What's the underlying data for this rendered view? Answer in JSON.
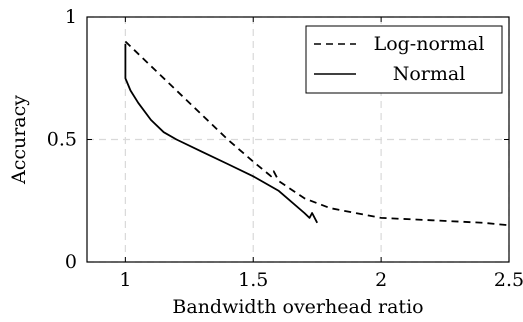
{
  "chart_data": {
    "type": "line",
    "xlabel": "Bandwidth overhead ratio",
    "ylabel": "Accuracy",
    "xlim": [
      0.85,
      2.5
    ],
    "ylim": [
      0,
      1
    ],
    "xticks": [
      1,
      1.5,
      2,
      2.5
    ],
    "xtick_labels": [
      "1",
      "1.5",
      "2",
      "2.5"
    ],
    "yticks": [
      0,
      0.5,
      1
    ],
    "ytick_labels": [
      "0",
      "0.5",
      "1"
    ],
    "grid": true,
    "legend_position": "top-right",
    "series": [
      {
        "name": "Log-normal",
        "style": "dashed",
        "color": "#000000",
        "x": [
          1.0,
          1.1,
          1.2,
          1.3,
          1.4,
          1.5,
          1.57,
          1.58,
          1.6,
          1.7,
          1.8,
          1.9,
          2.0,
          2.2,
          2.4,
          2.5
        ],
        "y": [
          0.9,
          0.8,
          0.7,
          0.6,
          0.5,
          0.41,
          0.35,
          0.37,
          0.33,
          0.26,
          0.22,
          0.2,
          0.18,
          0.17,
          0.16,
          0.15
        ]
      },
      {
        "name": "Normal",
        "style": "solid",
        "color": "#000000",
        "x": [
          1.0,
          1.0,
          1.0,
          1.02,
          1.05,
          1.1,
          1.15,
          1.2,
          1.3,
          1.4,
          1.5,
          1.6,
          1.7,
          1.72,
          1.73,
          1.75
        ],
        "y": [
          0.89,
          0.82,
          0.75,
          0.7,
          0.65,
          0.58,
          0.53,
          0.5,
          0.45,
          0.4,
          0.35,
          0.29,
          0.2,
          0.18,
          0.2,
          0.16
        ]
      }
    ]
  }
}
